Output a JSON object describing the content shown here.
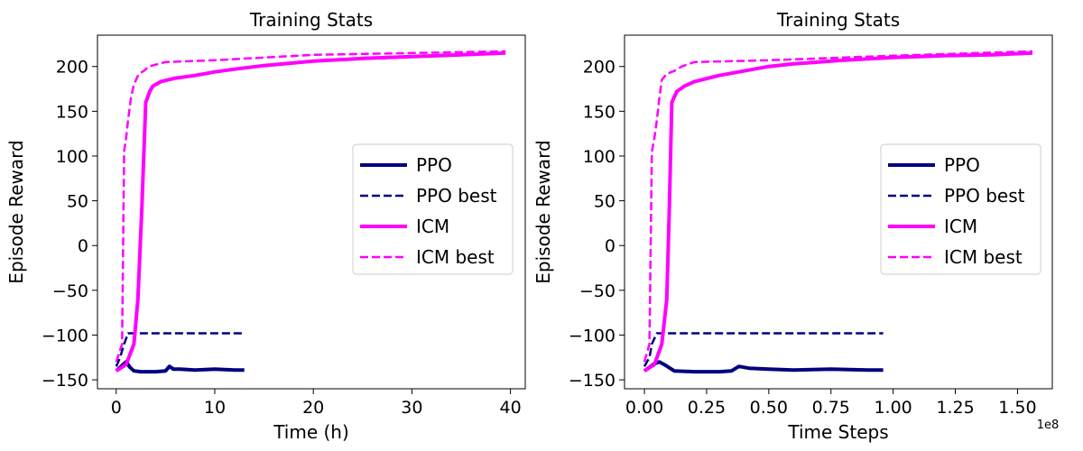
{
  "chart_data": [
    {
      "type": "line",
      "title": "Training Stats",
      "xlabel": "Time (h)",
      "ylabel": "Episode Reward",
      "xlim": [
        -1.9,
        41.5
      ],
      "ylim": [
        -160,
        235
      ],
      "xticks": [
        0,
        10,
        20,
        30,
        40
      ],
      "xtick_labels": [
        "0",
        "10",
        "20",
        "30",
        "40"
      ],
      "yticks": [
        -150,
        -100,
        -50,
        0,
        50,
        100,
        150,
        200
      ],
      "ytick_labels": [
        "−150",
        "−100",
        "−50",
        "0",
        "50",
        "100",
        "150",
        "200"
      ],
      "offset_text": "",
      "legend": "center-right",
      "grid": false,
      "series": [
        {
          "name": "PPO",
          "style": "solid",
          "color": "#000080",
          "x": [
            0,
            0.5,
            1.0,
            1.4,
            1.8,
            2.5,
            4.0,
            5.0,
            5.4,
            5.8,
            6.5,
            8,
            10,
            12,
            13
          ],
          "y": [
            -140,
            -135,
            -130,
            -136,
            -140,
            -141,
            -141,
            -140,
            -135,
            -138,
            -138,
            -139,
            -138,
            -139,
            -139
          ]
        },
        {
          "name": "PPO best",
          "style": "dashed",
          "color": "#000080",
          "x": [
            0,
            0.4,
            0.8,
            1.2,
            13
          ],
          "y": [
            -135,
            -125,
            -110,
            -98,
            -98
          ]
        },
        {
          "name": "ICM",
          "style": "solid",
          "color": "#ff00ff",
          "x": [
            0,
            1.0,
            1.8,
            2.2,
            2.6,
            3.0,
            3.4,
            3.7,
            4.5,
            6,
            8,
            10,
            12,
            15,
            20,
            25,
            30,
            35,
            39.5
          ],
          "y": [
            -140,
            -133,
            -110,
            -60,
            40,
            160,
            172,
            178,
            183,
            187,
            190,
            194,
            197,
            201,
            206,
            209,
            211,
            213,
            215
          ]
        },
        {
          "name": "ICM best",
          "style": "dashed",
          "color": "#ff00ff",
          "x": [
            0,
            0.6,
            0.8,
            1.0,
            1.2,
            1.5,
            1.8,
            2.3,
            2.8,
            3.3,
            4.0,
            5.0,
            10,
            15,
            20,
            30,
            39.5
          ],
          "y": [
            -130,
            -110,
            105,
            120,
            140,
            165,
            180,
            192,
            195,
            200,
            202,
            205,
            207,
            210,
            213,
            215,
            217
          ]
        }
      ]
    },
    {
      "type": "line",
      "title": "Training Stats",
      "xlabel": "Time Steps",
      "ylabel": "Episode Reward",
      "xlim": [
        -0.08,
        1.64
      ],
      "ylim": [
        -160,
        235
      ],
      "xticks": [
        0,
        0.25,
        0.5,
        0.75,
        1.0,
        1.25,
        1.5
      ],
      "xtick_labels": [
        "0.00",
        "0.25",
        "0.50",
        "0.75",
        "1.00",
        "1.25",
        "1.50"
      ],
      "yticks": [
        -150,
        -100,
        -50,
        0,
        50,
        100,
        150,
        200
      ],
      "ytick_labels": [
        "−150",
        "−100",
        "−50",
        "0",
        "50",
        "100",
        "150",
        "200"
      ],
      "offset_text": "1e8",
      "legend": "center-right",
      "grid": false,
      "series": [
        {
          "name": "PPO",
          "style": "solid",
          "color": "#000080",
          "x": [
            0,
            0.02,
            0.04,
            0.06,
            0.08,
            0.12,
            0.2,
            0.3,
            0.35,
            0.38,
            0.42,
            0.5,
            0.6,
            0.75,
            0.9,
            0.96
          ],
          "y": [
            -140,
            -136,
            -132,
            -130,
            -133,
            -140,
            -141,
            -141,
            -140,
            -135,
            -137,
            -138,
            -139,
            -138,
            -139,
            -139
          ]
        },
        {
          "name": "PPO best",
          "style": "dashed",
          "color": "#000080",
          "x": [
            0,
            0.02,
            0.03,
            0.05,
            0.96
          ],
          "y": [
            -135,
            -125,
            -110,
            -98,
            -98
          ]
        },
        {
          "name": "ICM",
          "style": "solid",
          "color": "#ff00ff",
          "x": [
            0,
            0.04,
            0.07,
            0.09,
            0.1,
            0.11,
            0.13,
            0.16,
            0.2,
            0.3,
            0.4,
            0.5,
            0.6,
            0.8,
            1.0,
            1.2,
            1.4,
            1.56
          ],
          "y": [
            -140,
            -133,
            -110,
            -60,
            40,
            160,
            172,
            178,
            183,
            190,
            195,
            200,
            203,
            207,
            210,
            212,
            213,
            215
          ]
        },
        {
          "name": "ICM best",
          "style": "dashed",
          "color": "#ff00ff",
          "x": [
            0,
            0.02,
            0.03,
            0.04,
            0.05,
            0.06,
            0.07,
            0.09,
            0.12,
            0.15,
            0.2,
            0.5,
            1.0,
            1.56
          ],
          "y": [
            -130,
            -110,
            105,
            120,
            140,
            165,
            185,
            192,
            195,
            200,
            205,
            207,
            212,
            217
          ]
        }
      ]
    }
  ]
}
